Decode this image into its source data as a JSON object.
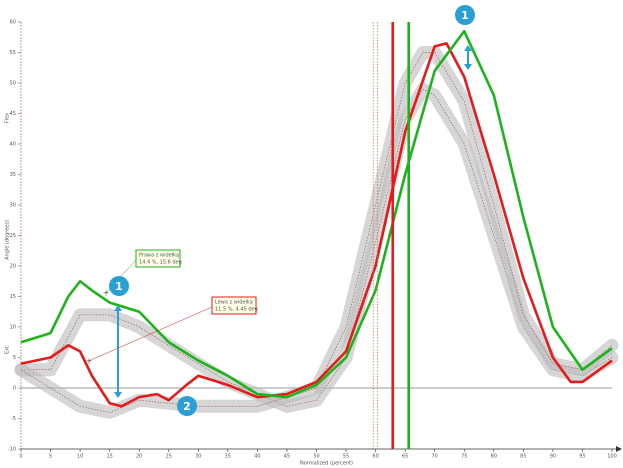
{
  "chart_data": {
    "type": "line",
    "ylabel": "Angle (degrees)",
    "ylabel_top": "Flex",
    "ylabel_bottom": "Ext",
    "xlabel": "Normalized (percent)",
    "xlim": [
      0,
      100
    ],
    "ylim": [
      -10,
      60
    ],
    "xticks": [
      0,
      5,
      10,
      15,
      20,
      25,
      30,
      35,
      40,
      45,
      50,
      55,
      60,
      65,
      70,
      75,
      80,
      85,
      90,
      95,
      100
    ],
    "yticks": [
      -10,
      -5,
      0,
      5,
      10,
      15,
      20,
      25,
      30,
      35,
      40,
      45,
      50,
      55,
      60
    ],
    "series": [
      {
        "color": "#bbbbbb",
        "style": "band",
        "x": [
          0,
          5,
          10,
          15,
          20,
          25,
          30,
          35,
          40,
          45,
          50,
          55,
          60,
          65,
          68,
          70,
          75,
          80,
          85,
          90,
          95,
          100
        ],
        "values": [
          3,
          3,
          12,
          12,
          10,
          7,
          4,
          1,
          -1,
          -3,
          -2,
          5,
          24,
          44,
          49,
          48,
          40,
          25,
          10,
          3,
          2,
          5
        ]
      },
      {
        "color": "#bbbbbb",
        "style": "band",
        "x": [
          0,
          5,
          10,
          15,
          20,
          25,
          30,
          40,
          50,
          55,
          60,
          65,
          68,
          70,
          75,
          80,
          85,
          90,
          95,
          100
        ],
        "values": [
          3,
          0,
          -3,
          -4,
          -2,
          -2.5,
          -3,
          -3,
          0,
          10,
          30,
          50,
          55,
          55,
          47,
          30,
          12,
          4,
          3,
          7
        ]
      },
      {
        "color": "#e41b1b",
        "style": "solid",
        "x": [
          0,
          5,
          8,
          10,
          12,
          15,
          17,
          20,
          23,
          25,
          28,
          30,
          35,
          40,
          45,
          50,
          55,
          60,
          65,
          70,
          72,
          75,
          80,
          85,
          90,
          93,
          95,
          100
        ],
        "values": [
          4,
          5,
          7,
          6,
          2,
          -2.5,
          -3,
          -1.5,
          -1,
          -2,
          0.5,
          2,
          0.5,
          -1.5,
          -1,
          1,
          6,
          20,
          42,
          56,
          56.5,
          51,
          35,
          18,
          5,
          1,
          1,
          4.5
        ]
      },
      {
        "color": "#1db31d",
        "style": "solid",
        "x": [
          0,
          5,
          8,
          10,
          12,
          15,
          20,
          25,
          30,
          35,
          40,
          45,
          50,
          55,
          60,
          65,
          70,
          75,
          80,
          85,
          90,
          95,
          100
        ],
        "values": [
          7.5,
          9,
          15,
          17.5,
          16,
          14,
          12.5,
          7.5,
          4.5,
          2,
          -1,
          -1.5,
          0.5,
          5,
          16,
          35,
          52,
          58.5,
          48,
          28,
          10,
          3,
          6.5
        ]
      }
    ],
    "vlines": [
      {
        "x": 59.6,
        "color": "#c08060",
        "style": "dotted"
      },
      {
        "x": 60.3,
        "color": "#c08060",
        "style": "dotted"
      },
      {
        "x": 62.9,
        "color": "#e41b1b",
        "style": "solid"
      },
      {
        "x": 65.6,
        "color": "#1db31d",
        "style": "solid"
      }
    ],
    "annotations": [
      {
        "title": "Prawa z widełką",
        "text": "14.4 %, 15.6 deg",
        "color": "#1db31d",
        "x": 14.4,
        "y": 15.6
      },
      {
        "title": "Lewa z widełką",
        "text": "11.5 %, 4.45 deg",
        "color": "#e41b1b",
        "x": 11.5,
        "y": 4.45
      }
    ],
    "markers": [
      "1",
      "1",
      "2"
    ]
  }
}
